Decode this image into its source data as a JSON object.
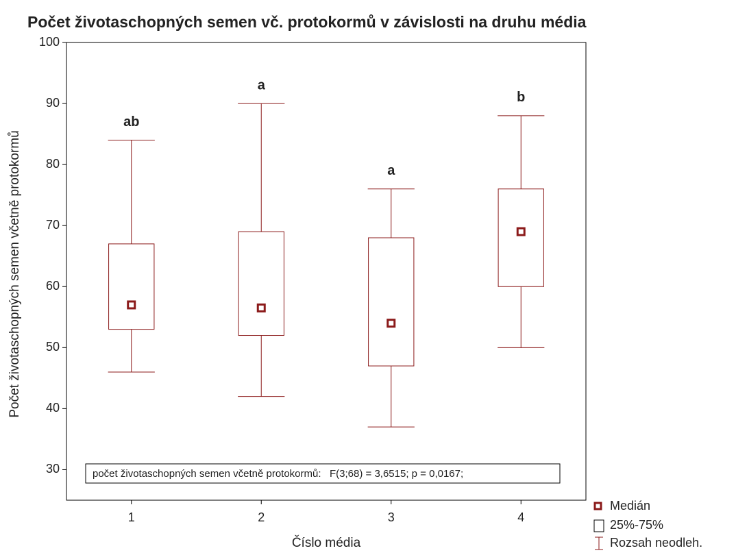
{
  "chart_data": {
    "type": "box",
    "title": "Počet životaschopných semen vč. protokormů v závislosti na druhu média",
    "x_label": "Číslo média",
    "y_label": "Počet životaschopných semen včetně protokormů",
    "categories": [
      "1",
      "2",
      "3",
      "4"
    ],
    "min": [
      46,
      42,
      37,
      50
    ],
    "q1": [
      53,
      52,
      47,
      60
    ],
    "median": [
      57,
      56.5,
      54,
      69
    ],
    "q3": [
      67,
      69,
      68,
      76
    ],
    "max": [
      84,
      90,
      76,
      88
    ],
    "group_labels": [
      "ab",
      "a",
      "a",
      "b"
    ],
    "color": "#8b1a1a",
    "ylim": [
      25,
      100
    ],
    "yticks": [
      30,
      40,
      50,
      60,
      70,
      80,
      90,
      100
    ],
    "annotation": "počet životaschopných semen včetně protokormů:   F(3;68) = 3,6515; p = 0,0167;",
    "legend": [
      "Medián",
      "25%-75%",
      "Rozsah neodleh."
    ]
  }
}
